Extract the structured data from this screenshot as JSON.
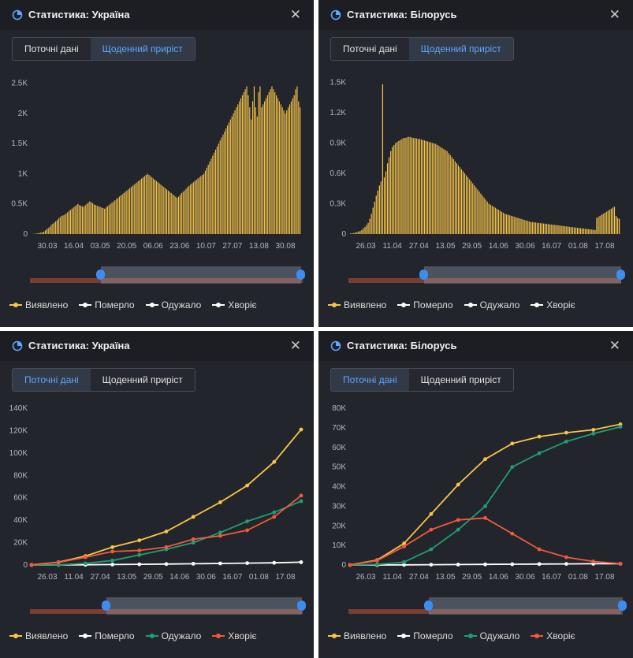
{
  "tabs": {
    "current": "Поточні дані",
    "daily": "Щоденний приріст"
  },
  "legend": [
    "Виявлено",
    "Померло",
    "Одужало",
    "Хворіє"
  ],
  "colors": {
    "detected": "#f7c548",
    "died": "#ffffff",
    "recovered": "#1f9e74",
    "sick": "#f05a3a",
    "accent": "#3d8cf0"
  },
  "icons": {
    "title": "pie-chart-icon",
    "close": "close-icon"
  },
  "panels": [
    {
      "title": "Статистика: Україна",
      "close": "✕"
    },
    {
      "title": "Статистика: Білорусь",
      "close": "✕"
    },
    {
      "title": "Статистика: Україна",
      "close": "✕"
    },
    {
      "title": "Статистика: Білорусь",
      "close": "✕"
    }
  ],
  "chart_data": [
    {
      "type": "bar",
      "title": "Статистика: Україна",
      "active_tab": "Щоденний приріст",
      "x_start": "2020-03-14",
      "x_end": "2020-08-31",
      "x_ticks": [
        "30.03",
        "16.04",
        "03.05",
        "20.05",
        "06.06",
        "23.06",
        "10.07",
        "27.07",
        "13.08",
        "30.08"
      ],
      "y_ticks": [
        "0",
        "0.5K",
        "1K",
        "1.5K",
        "2K",
        "2.5K"
      ],
      "ylim": [
        0,
        2600
      ],
      "series": [
        {
          "name": "Виявлено",
          "values": [
            1,
            3,
            5,
            8,
            12,
            18,
            25,
            30,
            40,
            60,
            80,
            100,
            120,
            150,
            170,
            190,
            210,
            230,
            260,
            280,
            300,
            310,
            320,
            340,
            360,
            380,
            400,
            420,
            440,
            460,
            480,
            500,
            480,
            470,
            460,
            450,
            480,
            500,
            520,
            540,
            530,
            510,
            490,
            480,
            470,
            460,
            450,
            440,
            430,
            420,
            440,
            460,
            480,
            500,
            520,
            540,
            560,
            580,
            600,
            620,
            640,
            660,
            680,
            700,
            720,
            740,
            760,
            780,
            800,
            820,
            840,
            860,
            880,
            900,
            920,
            940,
            960,
            980,
            1000,
            980,
            960,
            940,
            920,
            900,
            880,
            860,
            840,
            820,
            800,
            780,
            760,
            740,
            720,
            700,
            680,
            660,
            640,
            620,
            600,
            620,
            650,
            680,
            700,
            720,
            750,
            780,
            800,
            820,
            840,
            860,
            880,
            900,
            920,
            940,
            960,
            980,
            1000,
            1050,
            1100,
            1150,
            1200,
            1250,
            1300,
            1350,
            1400,
            1450,
            1500,
            1550,
            1600,
            1650,
            1700,
            1750,
            1800,
            1850,
            1900,
            1950,
            2000,
            2050,
            2100,
            2150,
            2200,
            2250,
            2300,
            2350,
            2400,
            2450,
            2300,
            2100,
            1900,
            2200,
            2450,
            2100,
            1950,
            2350,
            2450,
            2100,
            2150,
            2200,
            2250,
            2300,
            2350,
            2400,
            2450,
            2400,
            2350,
            2300,
            2250,
            2200,
            2150,
            2100,
            2050,
            2000,
            2050,
            2100,
            2150,
            2200,
            2250,
            2300,
            2400,
            2450,
            2200,
            2100
          ]
        }
      ]
    },
    {
      "type": "bar",
      "title": "Статистика: Білорусь",
      "active_tab": "Щоденний приріст",
      "x_start": "2020-03-19",
      "x_end": "2020-08-31",
      "x_ticks": [
        "26.03",
        "11.04",
        "27.04",
        "13.05",
        "29.05",
        "14.06",
        "30.06",
        "16.07",
        "01.08",
        "17.08"
      ],
      "y_ticks": [
        "0",
        "0.3K",
        "0.6K",
        "0.9K",
        "1.2K",
        "1.5K"
      ],
      "ylim": [
        0,
        1550
      ],
      "series": [
        {
          "name": "Виявлено",
          "values": [
            5,
            8,
            10,
            15,
            20,
            25,
            30,
            40,
            55,
            70,
            90,
            110,
            150,
            200,
            260,
            320,
            380,
            430,
            480,
            520,
            1480,
            560,
            620,
            700,
            760,
            820,
            860,
            880,
            900,
            910,
            920,
            930,
            940,
            950,
            950,
            955,
            960,
            960,
            955,
            950,
            950,
            945,
            940,
            940,
            935,
            930,
            925,
            920,
            915,
            910,
            905,
            900,
            895,
            890,
            880,
            870,
            860,
            850,
            840,
            830,
            820,
            800,
            780,
            760,
            740,
            720,
            700,
            680,
            660,
            640,
            620,
            600,
            580,
            560,
            540,
            520,
            500,
            480,
            460,
            440,
            420,
            400,
            380,
            360,
            340,
            320,
            300,
            290,
            280,
            270,
            260,
            250,
            240,
            230,
            220,
            210,
            200,
            195,
            190,
            185,
            180,
            175,
            170,
            165,
            160,
            155,
            150,
            145,
            140,
            135,
            130,
            125,
            120,
            118,
            116,
            114,
            112,
            110,
            108,
            106,
            104,
            102,
            100,
            98,
            96,
            94,
            92,
            90,
            88,
            86,
            84,
            82,
            80,
            78,
            76,
            74,
            72,
            70,
            68,
            66,
            64,
            62,
            60,
            58,
            56,
            54,
            52,
            50,
            48,
            46,
            44,
            42,
            40,
            160,
            170,
            180,
            190,
            200,
            210,
            220,
            230,
            240,
            250,
            260,
            270,
            180,
            160,
            150
          ]
        }
      ]
    },
    {
      "type": "line",
      "title": "Статистика: Україна",
      "active_tab": "Поточні дані",
      "x_start": "2020-03-26",
      "x_end": "2020-08-31",
      "x_ticks": [
        "26.03",
        "11.04",
        "27.04",
        "13.05",
        "29.05",
        "14.06",
        "30.06",
        "16.07",
        "01.08",
        "17.08"
      ],
      "y_ticks": [
        "0",
        "20K",
        "40K",
        "60K",
        "80K",
        "100K",
        "120K",
        "140K"
      ],
      "ylim": [
        0,
        140000
      ],
      "series": [
        {
          "name": "Виявлено",
          "values": [
            200,
            2500,
            8000,
            16000,
            22000,
            30000,
            43000,
            56000,
            71000,
            92000,
            121000
          ]
        },
        {
          "name": "Померло",
          "values": [
            10,
            70,
            200,
            400,
            650,
            870,
            1100,
            1400,
            1700,
            2000,
            2500
          ]
        },
        {
          "name": "Одужало",
          "values": [
            5,
            100,
            1500,
            4000,
            9000,
            14000,
            20000,
            29000,
            39000,
            47000,
            57000
          ]
        },
        {
          "name": "Хворіє",
          "values": [
            180,
            2300,
            7000,
            12000,
            13000,
            16000,
            23000,
            26000,
            31000,
            43000,
            62000
          ]
        }
      ]
    },
    {
      "type": "line",
      "title": "Статистика: Білорусь",
      "active_tab": "Поточні дані",
      "x_start": "2020-03-26",
      "x_end": "2020-08-31",
      "x_ticks": [
        "26.03",
        "11.04",
        "27.04",
        "13.05",
        "29.05",
        "14.06",
        "30.06",
        "16.07",
        "01.08",
        "17.08"
      ],
      "y_ticks": [
        "0",
        "10K",
        "20K",
        "30K",
        "40K",
        "50K",
        "60K",
        "70K",
        "80K"
      ],
      "ylim": [
        0,
        80000
      ],
      "series": [
        {
          "name": "Виявлено",
          "values": [
            90,
            2500,
            11000,
            26000,
            41000,
            54000,
            62000,
            65500,
            67500,
            69000,
            71800
          ]
        },
        {
          "name": "Померло",
          "values": [
            0,
            20,
            80,
            150,
            230,
            330,
            400,
            500,
            570,
            630,
            650
          ]
        },
        {
          "name": "Одужало",
          "values": [
            0,
            300,
            1500,
            8000,
            18000,
            30000,
            50000,
            57000,
            63000,
            67000,
            70500
          ]
        },
        {
          "name": "Хворіє",
          "values": [
            90,
            2200,
            9500,
            18000,
            23000,
            24000,
            16000,
            8000,
            4000,
            1800,
            700
          ]
        }
      ]
    }
  ]
}
